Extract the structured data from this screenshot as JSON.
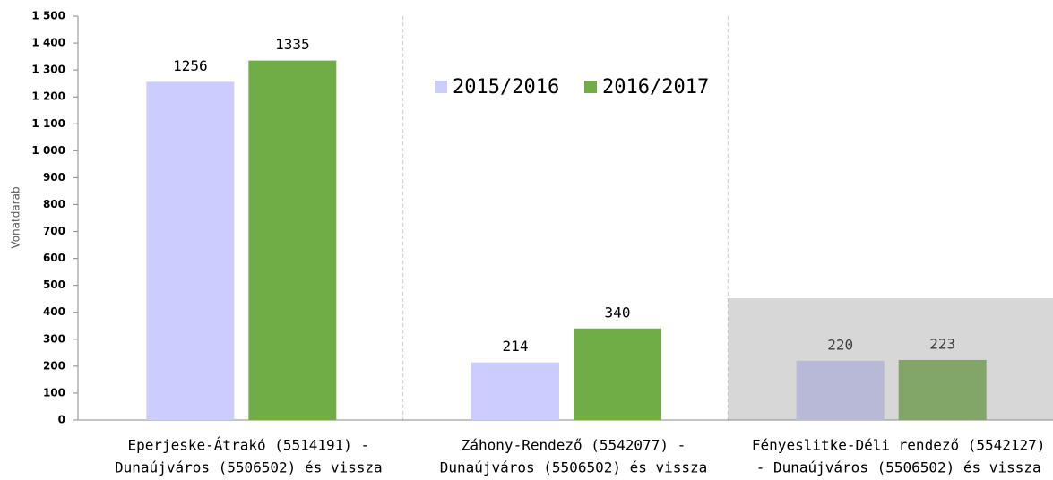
{
  "chart_data": {
    "type": "bar",
    "y_label": "Vonatdarab",
    "categories": [
      [
        "Eperjeske-Átrakó (5514191) -",
        "Dunaújváros (5506502) és vissza"
      ],
      [
        "Záhony-Rendező (5542077) -",
        "Dunaújváros (5506502) és vissza"
      ],
      [
        "Fényeslitke-Déli rendező (5542127)",
        "- Dunaújváros (5506502) és vissza"
      ]
    ],
    "series": [
      {
        "name": "2015/2016",
        "color": "#ccccff",
        "values": [
          1256,
          214,
          220
        ]
      },
      {
        "name": "2016/2017",
        "color": "#70ad47",
        "values": [
          1335,
          340,
          223
        ]
      }
    ],
    "ylim": [
      0,
      1500
    ],
    "yticks": [
      0,
      100,
      200,
      300,
      400,
      500,
      600,
      700,
      800,
      900,
      {
        "value": 1000,
        "label": "1 000"
      },
      {
        "value": 1100,
        "label": "1 100"
      },
      {
        "value": 1200,
        "label": "1 200"
      },
      {
        "value": 1300,
        "label": "1 300"
      },
      {
        "value": 1400,
        "label": "1 400"
      },
      {
        "value": 1500,
        "label": "1 500"
      }
    ],
    "grid": true,
    "legend": "top"
  }
}
